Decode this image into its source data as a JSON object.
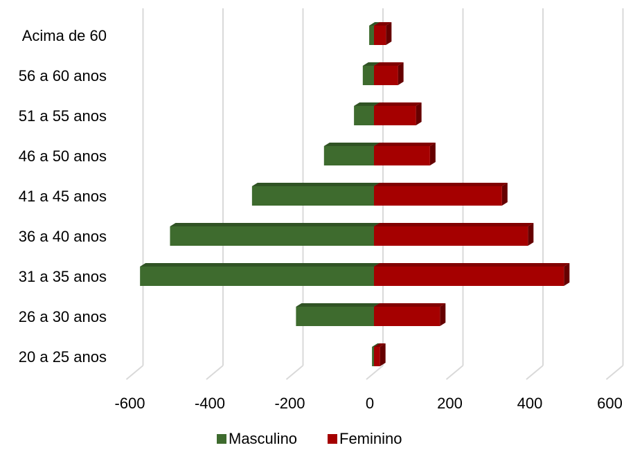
{
  "chart_data": {
    "type": "bar",
    "orientation": "horizontal",
    "style": "3d-population-pyramid",
    "categories": [
      "20 a 25 anos",
      "26 a 30 anos",
      "31 a 35 anos",
      "36 a 40 anos",
      "41 a 45 anos",
      "46 a 50 anos",
      "51 a 55 anos",
      "56 a 60 anos",
      "Acima de 60"
    ],
    "series": [
      {
        "name": "Masculino",
        "color": "#3e6b2e",
        "values": [
          -5,
          -195,
          -585,
          -510,
          -305,
          -125,
          -50,
          -28,
          -12
        ]
      },
      {
        "name": "Feminino",
        "color": "#a50000",
        "values": [
          15,
          165,
          475,
          385,
          320,
          140,
          105,
          60,
          30
        ]
      }
    ],
    "xticks": [
      "-600",
      "-400",
      "-200",
      "0",
      "200",
      "400",
      "600"
    ],
    "xlim": [
      -600,
      600
    ],
    "grid": true,
    "legend": {
      "position": "bottom",
      "items": [
        "Masculino",
        "Feminino"
      ]
    },
    "title": "",
    "xlabel": "",
    "ylabel": ""
  }
}
